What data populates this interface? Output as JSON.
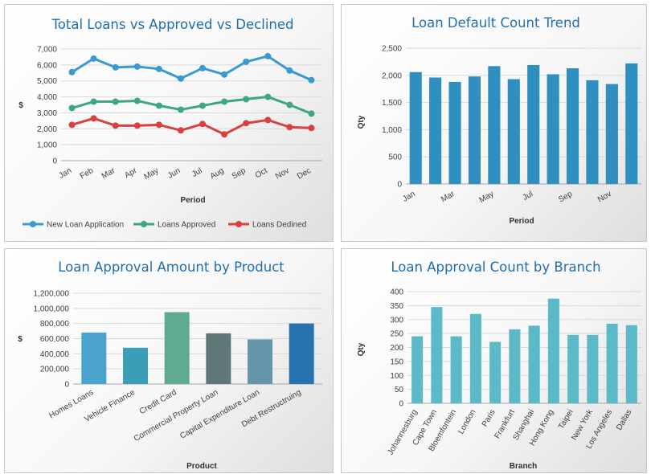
{
  "chart_data": [
    {
      "type": "line",
      "title": "Total Loans vs Approved vs Declined",
      "xlabel": "Period",
      "ylabel": "$",
      "ylim": [
        0,
        7000
      ],
      "yticks": [
        "0",
        "1,000",
        "2,000",
        "3,000",
        "4,000",
        "5,000",
        "6,000",
        "7,000"
      ],
      "categories": [
        "Jan",
        "Feb",
        "Mar",
        "Apr",
        "May",
        "Jun",
        "Jul",
        "Aug",
        "Sep",
        "Oct",
        "Nov",
        "Dec"
      ],
      "legend_position": "bottom",
      "grid": true,
      "series": [
        {
          "name": "New Loan Application",
          "color": "#3a9ad0",
          "values": [
            5550,
            6400,
            5850,
            5900,
            5750,
            5150,
            5800,
            5400,
            6200,
            6550,
            5650,
            5050
          ]
        },
        {
          "name": "Loans Approved",
          "color": "#3fa77d",
          "values": [
            3300,
            3700,
            3700,
            3750,
            3450,
            3200,
            3450,
            3700,
            3850,
            4000,
            3500,
            2950
          ]
        },
        {
          "name": "Loans Dedined",
          "color": "#d94141",
          "values": [
            2250,
            2650,
            2200,
            2200,
            2250,
            1900,
            2300,
            1650,
            2350,
            2550,
            2100,
            2050
          ]
        }
      ]
    },
    {
      "type": "bar",
      "title": "Loan Default Count Trend",
      "xlabel": "Period",
      "ylabel": "Qty",
      "ylim": [
        0,
        2500
      ],
      "yticks": [
        "0",
        "500",
        "1,000",
        "1,500",
        "2,000",
        "2,500"
      ],
      "categories": [
        "Jan",
        "Feb",
        "Mar",
        "Apr",
        "May",
        "Jun",
        "Jul",
        "Aug",
        "Sep",
        "Oct",
        "Nov",
        "Dec"
      ],
      "shown_labels": [
        "Jan",
        "",
        "Mar",
        "",
        "May",
        "",
        "Jul",
        "",
        "Sep",
        "",
        "Nov",
        ""
      ],
      "color": "#2f8fc0",
      "grid": true,
      "values": [
        2060,
        1960,
        1880,
        1980,
        2170,
        1930,
        2190,
        2020,
        2130,
        1910,
        1840,
        2220
      ]
    },
    {
      "type": "bar",
      "title": "Loan Approval Amount by Product",
      "xlabel": "Product",
      "ylabel": "$",
      "ylim": [
        0,
        1200000
      ],
      "yticks": [
        "0",
        "200,000",
        "400,000",
        "600,000",
        "800,000",
        "1,000,000",
        "1,200,000"
      ],
      "categories": [
        "Homes Loans",
        "Vehicle Finance",
        "Credit Card",
        "Commercial Property Loan",
        "Capital Expenditure Loan",
        "Debt Restructruing"
      ],
      "colors": [
        "#4aa3cc",
        "#3a9eb6",
        "#5eaa92",
        "#5f7779",
        "#6595a9",
        "#2673b0"
      ],
      "grid": true,
      "values": [
        680000,
        480000,
        950000,
        670000,
        590000,
        800000
      ]
    },
    {
      "type": "bar",
      "title": "Loan Approval Count by Branch",
      "xlabel": "Branch",
      "ylabel": "Qty",
      "ylim": [
        0,
        400
      ],
      "yticks": [
        "0",
        "50",
        "100",
        "150",
        "200",
        "250",
        "300",
        "350",
        "400"
      ],
      "categories": [
        "Johannesburg",
        "Cape Town",
        "Bloemfontein",
        "London",
        "Paris",
        "Frankfurt",
        "Shanghai",
        "Hong Kong",
        "Taipei",
        "New York",
        "Los Angeles",
        "Dallas"
      ],
      "color": "#5cbac8",
      "grid": true,
      "values": [
        240,
        345,
        240,
        320,
        220,
        265,
        278,
        375,
        245,
        245,
        285,
        280
      ]
    }
  ]
}
